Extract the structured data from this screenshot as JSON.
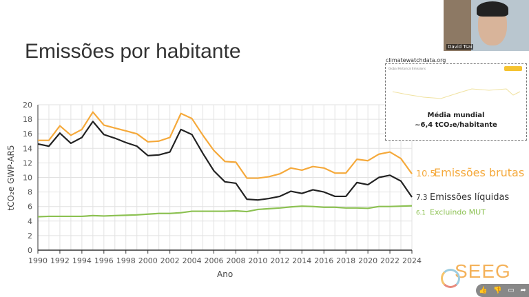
{
  "slide": {
    "title": "Emissões por habitante",
    "inset_url": "climatewatchdata.org",
    "inset_title": "Global Historical Emissions",
    "inset_note_line1": "Média mundial",
    "inset_note_line2": "~6,4 tCO₂e/habitante",
    "logo": "SEEG"
  },
  "video": {
    "participant_name": "David Tsai",
    "actions": [
      "thumbs-up-icon",
      "thumbs-down-icon",
      "comment-icon",
      "share-icon"
    ]
  },
  "chart_data": {
    "type": "line",
    "title": "Emissões por habitante",
    "xlabel": "Ano",
    "ylabel": "tCO₂e GWP-AR5",
    "ylim": [
      0,
      20
    ],
    "xlim": [
      1990,
      2024
    ],
    "yticks": [
      "0",
      "2",
      "4",
      "6",
      "8",
      "10",
      "12",
      "14",
      "16",
      "18",
      "20"
    ],
    "xticks": [
      "1990",
      "1992",
      "1994",
      "1996",
      "1998",
      "2000",
      "2002",
      "2004",
      "2006",
      "2008",
      "2010",
      "2012",
      "2014",
      "2016",
      "2018",
      "2020",
      "2022",
      "2024"
    ],
    "grid": true,
    "x": [
      1990,
      1991,
      1992,
      1993,
      1994,
      1995,
      1996,
      1997,
      1998,
      1999,
      2000,
      2001,
      2002,
      2003,
      2004,
      2005,
      2006,
      2007,
      2008,
      2009,
      2010,
      2011,
      2012,
      2013,
      2014,
      2015,
      2016,
      2017,
      2018,
      2019,
      2020,
      2021,
      2022,
      2023,
      2024
    ],
    "series": [
      {
        "name": "Emissões brutas",
        "end_label": "10.5",
        "color": "#f5a93b",
        "values": [
          15.1,
          15.1,
          17.1,
          15.8,
          16.6,
          19.0,
          17.2,
          16.8,
          16.4,
          16.0,
          14.9,
          15.0,
          15.5,
          18.8,
          18.1,
          15.8,
          13.7,
          12.2,
          12.1,
          9.9,
          9.9,
          10.1,
          10.5,
          11.3,
          11.0,
          11.5,
          11.3,
          10.6,
          10.6,
          12.5,
          12.3,
          13.2,
          13.5,
          12.6,
          10.5
        ]
      },
      {
        "name": "Emissões líquidas",
        "end_label": "7.3",
        "color": "#222222",
        "values": [
          14.6,
          14.3,
          16.1,
          14.7,
          15.5,
          17.7,
          15.9,
          15.4,
          14.8,
          14.3,
          13.0,
          13.1,
          13.5,
          16.6,
          15.9,
          13.3,
          10.9,
          9.4,
          9.2,
          7.0,
          6.9,
          7.1,
          7.4,
          8.1,
          7.8,
          8.3,
          8.0,
          7.4,
          7.4,
          9.3,
          9.0,
          10.0,
          10.3,
          9.5,
          7.3
        ]
      },
      {
        "name": "Excluindo MUT",
        "end_label": "6.1",
        "color": "#8cc152",
        "values": [
          4.6,
          4.65,
          4.65,
          4.65,
          4.65,
          4.75,
          4.7,
          4.75,
          4.8,
          4.85,
          4.95,
          5.05,
          5.05,
          5.15,
          5.35,
          5.35,
          5.35,
          5.35,
          5.4,
          5.3,
          5.6,
          5.7,
          5.8,
          5.95,
          6.05,
          6.0,
          5.9,
          5.9,
          5.8,
          5.8,
          5.75,
          6.0,
          6.0,
          6.05,
          6.1
        ]
      }
    ]
  }
}
